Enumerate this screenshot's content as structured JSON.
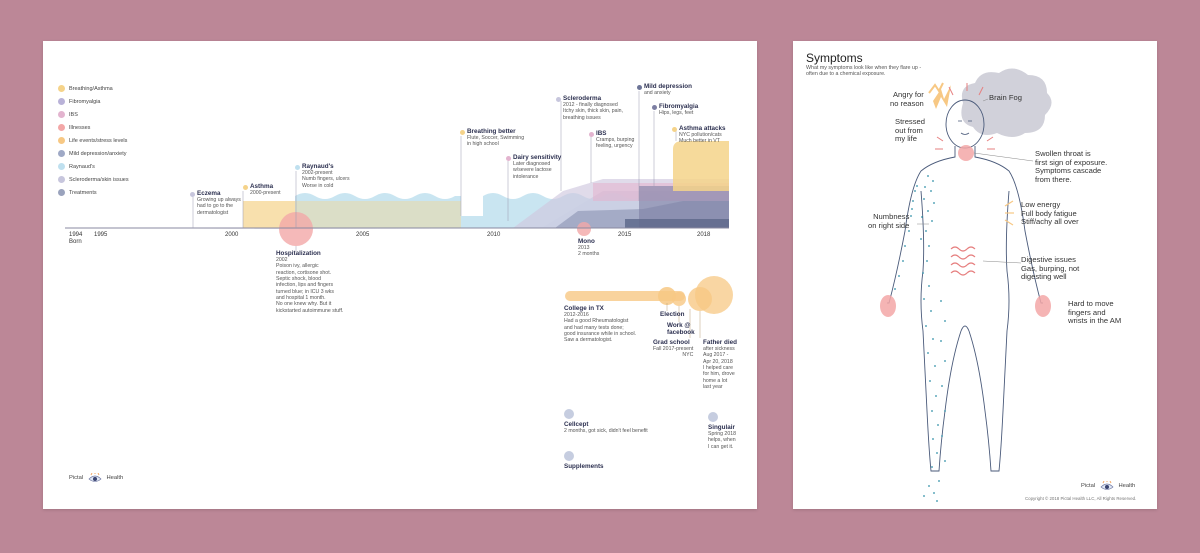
{
  "colors": {
    "background": "#bc8797",
    "breathing": "#f5d38a",
    "fibromyalgia": "#b9b2d8",
    "ibs": "#e3b4cf",
    "illnesses": "#f3a7a7",
    "life_events": "#f7c884",
    "depression": "#9fa9c6",
    "raynauds": "#bfe0ef",
    "scleroderma": "#c7c6dd",
    "treatments": "#9aa3bd"
  },
  "legend": [
    {
      "label": "Breathing/Asthma",
      "color": "#f5d38a"
    },
    {
      "label": "Fibromyalgia",
      "color": "#b9b2d8"
    },
    {
      "label": "IBS",
      "color": "#e3b4cf"
    },
    {
      "label": "Illnesses",
      "color": "#f3a7a7"
    },
    {
      "label": "Life events/stress levels",
      "color": "#f7c884"
    },
    {
      "label": "Mild depression/anxiety",
      "color": "#9fa9c6"
    },
    {
      "label": "Raynaud's",
      "color": "#bfe0ef"
    },
    {
      "label": "Scleroderma/skin issues",
      "color": "#c7c6dd"
    },
    {
      "label": "Treatments",
      "color": "#9aa3bd"
    }
  ],
  "axis": {
    "start_year": "1994",
    "start_sub": "Born",
    "ticks": [
      "1995",
      "2000",
      "2005",
      "2010",
      "2015",
      "2018"
    ]
  },
  "events": {
    "eczema": {
      "title": "Eczema",
      "body": "Growing up always\nhad to go to the\ndermatologist"
    },
    "asthma": {
      "title": "Asthma",
      "body": "2000-present"
    },
    "raynauds": {
      "title": "Raynaud's",
      "body": "2002-present\nNumb fingers, ulcers\nWorse in cold"
    },
    "hospitalization": {
      "title": "Hospitalization",
      "body": "2002\nPoison ivy, allergic\nreaction, cortisone shot.\nSeptic shock, blood\ninfection, lips and fingers\nturned blue; in ICU 3 wks\nand hospital 1 month.\nNo one knew why. But it\nkickstarted autoimmune stuff."
    },
    "breathing": {
      "title": "Breathing better",
      "body": "Flute, Soccer, Swimming\nin high school"
    },
    "dairy": {
      "title": "Dairy sensitivity",
      "body": "Later diagnosed\nw/severe lactose\nintolerance"
    },
    "scleroderma": {
      "title": "Scleroderma",
      "body": "2012 - finally diagnosed\nItchy skin, thick skin, pain,\nbreathing issues"
    },
    "ibs": {
      "title": "IBS",
      "body": "Cramps, burping\nfeeling, urgency"
    },
    "depression": {
      "title": "Mild depression",
      "body": "and anxiety"
    },
    "fibro": {
      "title": "Fibromyalgia",
      "body": "Hips, legs, feet"
    },
    "asthma_attacks": {
      "title": "Asthma attacks",
      "body": "NYC pollution/cats\nMuch better in VT"
    },
    "mono": {
      "title": "Mono",
      "body": "2013\n2 months"
    },
    "college": {
      "title": "College in TX",
      "body": "2012-2016\nHad a good Rheumatologist\nand had many tests done;\ngood insurance while in school.\nSaw a dermatologist."
    },
    "election": {
      "title": "Election",
      "body": ""
    },
    "work": {
      "title": "Work @\nfacebook",
      "body": ""
    },
    "gradschool": {
      "title": "Grad school",
      "body": "Fall 2017-present\nNYC"
    },
    "father": {
      "title": "Father died",
      "body": "after sickness\nAug 2017 -\nApr 20, 2018\nI helped care\nfor him, drove\nhome a lot\nlast year"
    },
    "cellcept": {
      "title": "Cellcept",
      "body": "2 months, got sick, didn't feel benefit"
    },
    "singulair": {
      "title": "Singulair",
      "body": "Spring 2018\nhelps, when\nI can get it."
    },
    "supplements": {
      "title": "Supplements",
      "body": ""
    }
  },
  "brand": {
    "name_left": "Pictal",
    "name_right": "Health"
  },
  "symptoms": {
    "title": "Symptoms",
    "subtitle": "What my symptoms look like when they flare up -\noften due to a chemical exposure.",
    "labels": {
      "angry": "Angry for\nno reason",
      "brainfog": "Brain Fog",
      "stressed": "Stressed\nout from\nmy life",
      "throat": "Swollen throat is\nfirst sign of exposure.\nSymptoms cascade\nfrom there.",
      "energy": "Low energy\nFull body fatigue\nStiff/achy all over",
      "numb": "Numbness\non right side",
      "digestive": "Digestive issues\nGas, burping, not\ndigesting well",
      "hands": "Hard to move\nfingers and\nwrists in the AM"
    },
    "copyright": "Copyright © 2018 Pictal Health LLC, All Rights Reserved."
  }
}
